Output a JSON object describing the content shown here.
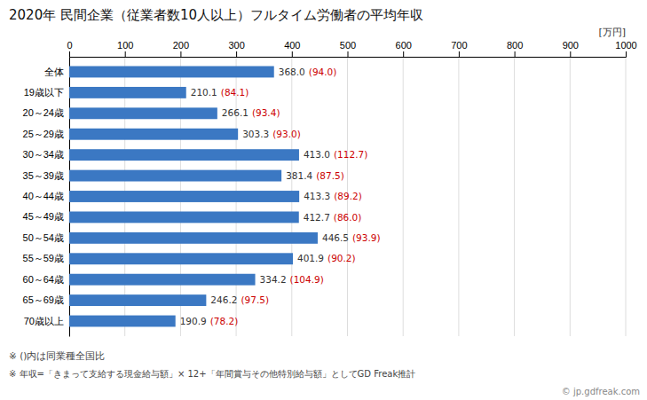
{
  "chart_data": {
    "type": "bar",
    "orientation": "horizontal",
    "title": "2020年 民間企業（従業者数10人以上）フルタイム労働者の平均年収",
    "xlabel": "[万円]",
    "categories": [
      "全体",
      "19歳以下",
      "20～24歳",
      "25～29歳",
      "30～34歳",
      "35～39歳",
      "40～44歳",
      "45～49歳",
      "50～54歳",
      "55～59歳",
      "60～64歳",
      "65～69歳",
      "70歳以上"
    ],
    "values": [
      368.0,
      210.1,
      266.1,
      303.3,
      413.0,
      381.4,
      413.3,
      412.7,
      446.5,
      401.9,
      334.2,
      246.2,
      190.9
    ],
    "value_labels": [
      "368.0",
      "210.1",
      "266.1",
      "303.3",
      "413.0",
      "381.4",
      "413.3",
      "412.7",
      "446.5",
      "401.9",
      "334.2",
      "246.2",
      "190.9"
    ],
    "ratios": [
      94.0,
      84.1,
      93.4,
      93.0,
      112.7,
      87.5,
      89.2,
      86.0,
      93.9,
      90.2,
      104.9,
      97.5,
      78.2
    ],
    "ratio_labels": [
      "(94.0)",
      "(84.1)",
      "(93.4)",
      "(93.0)",
      "(112.7)",
      "(87.5)",
      "(89.2)",
      "(86.0)",
      "(93.9)",
      "(90.2)",
      "(104.9)",
      "(97.5)",
      "(78.2)"
    ],
    "color": "#3b78c3",
    "xlim": [
      0,
      1000
    ],
    "xticks": [
      0,
      100,
      200,
      300,
      400,
      500,
      600,
      700,
      800,
      900,
      1000
    ],
    "grid": true,
    "data_labels": true,
    "annotations": [
      "※ ()内は同業種全国比",
      "※ 年収=「きまって支給する現金給与額」× 12+「年間賞与その他特別給与額」としてGD Freak推計",
      "© jp.gdfreak.com"
    ]
  }
}
